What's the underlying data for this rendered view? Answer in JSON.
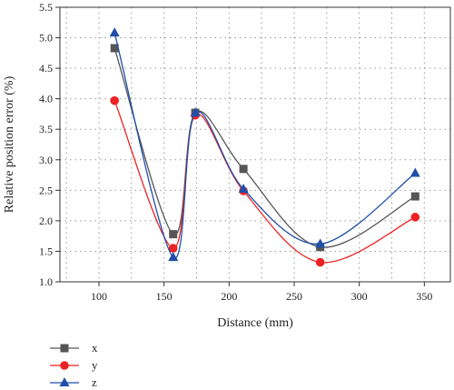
{
  "chart_data": {
    "type": "line",
    "xlabel": "Distance (mm)",
    "ylabel": "Relative position error (%)",
    "xlim": [
      70,
      370
    ],
    "ylim": [
      1.0,
      5.5
    ],
    "xticks": [
      100,
      150,
      200,
      250,
      300,
      350
    ],
    "yticks": [
      1.0,
      1.5,
      2.0,
      2.5,
      3.0,
      3.5,
      4.0,
      4.5,
      5.0,
      5.5
    ],
    "x": [
      112,
      157,
      174,
      211,
      270,
      343
    ],
    "grid": true,
    "legend_position": "bottom-left",
    "series": [
      {
        "name": "x",
        "values": [
          4.83,
          1.78,
          3.77,
          2.85,
          1.57,
          2.4
        ],
        "color": "#555555",
        "marker": "square"
      },
      {
        "name": "y",
        "values": [
          3.97,
          1.55,
          3.73,
          2.49,
          1.32,
          2.06
        ],
        "color": "#ee2222",
        "marker": "circle"
      },
      {
        "name": "z",
        "values": [
          5.08,
          1.4,
          3.77,
          2.52,
          1.62,
          2.78
        ],
        "color": "#1f4fa8",
        "marker": "triangle"
      }
    ]
  }
}
